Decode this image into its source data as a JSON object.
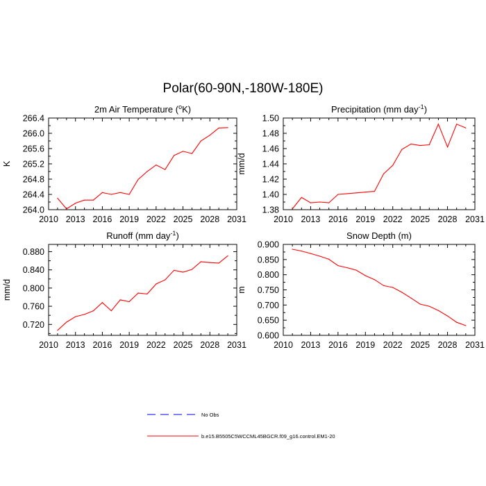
{
  "figure": {
    "title": "Polar(60-90N,-180W-180E)"
  },
  "chart_data": [
    {
      "type": "line",
      "title": "2m Air Temperature",
      "title_units_sup": "o",
      "title_units_main": "K",
      "ylabel": "K",
      "xlim": [
        2010,
        2031
      ],
      "ylim": [
        264.0,
        266.4
      ],
      "xticks": [
        2010,
        2013,
        2016,
        2019,
        2022,
        2025,
        2028,
        2031
      ],
      "yticks": [
        "264.0",
        "264.4",
        "264.8",
        "265.2",
        "265.6",
        "266.0",
        "266.4"
      ],
      "x": [
        2011,
        2012,
        2013,
        2014,
        2015,
        2016,
        2017,
        2018,
        2019,
        2020,
        2021,
        2022,
        2023,
        2024,
        2025,
        2026,
        2027,
        2028,
        2029,
        2030
      ],
      "series": [
        {
          "name": "b.e15.B5505C5WCCML45BGCR.f09_g16.control.EM1-20",
          "color": "#ff0000",
          "values": [
            264.3,
            264.02,
            264.17,
            264.25,
            264.25,
            264.45,
            264.4,
            264.45,
            264.4,
            264.79,
            265.0,
            265.17,
            265.05,
            265.42,
            265.53,
            265.47,
            265.8,
            265.95,
            266.14,
            266.15
          ]
        }
      ]
    },
    {
      "type": "line",
      "title": "Precipitation (mm day",
      "title_sup": "-1",
      "title_after": ")",
      "ylabel": "mm/d",
      "xlim": [
        2010,
        2031
      ],
      "ylim": [
        1.38,
        1.5
      ],
      "xticks": [
        2010,
        2013,
        2016,
        2019,
        2022,
        2025,
        2028,
        2031
      ],
      "yticks": [
        "1.38",
        "1.40",
        "1.42",
        "1.44",
        "1.46",
        "1.48",
        "1.50"
      ],
      "x": [
        2011,
        2012,
        2013,
        2014,
        2015,
        2016,
        2017,
        2018,
        2019,
        2020,
        2021,
        2022,
        2023,
        2024,
        2025,
        2026,
        2027,
        2028,
        2029,
        2030
      ],
      "series": [
        {
          "name": "b.e15.B5505C5WCCML45BGCR.f09_g16.control.EM1-20",
          "color": "#ff0000",
          "values": [
            1.381,
            1.396,
            1.389,
            1.39,
            1.389,
            1.4,
            1.401,
            1.402,
            1.403,
            1.404,
            1.427,
            1.438,
            1.459,
            1.466,
            1.464,
            1.465,
            1.492,
            1.462,
            1.492,
            1.487
          ]
        }
      ]
    },
    {
      "type": "line",
      "title": "Runoff (mm day",
      "title_sup": "-1",
      "title_after": ")",
      "ylabel": "mm/d",
      "xlim": [
        2010,
        2031
      ],
      "ylim": [
        0.696,
        0.896
      ],
      "xticks": [
        2010,
        2013,
        2016,
        2019,
        2022,
        2025,
        2028,
        2031
      ],
      "yticks": [
        "0.720",
        "0.760",
        "0.800",
        "0.840",
        "0.880"
      ],
      "ytick_values": [
        0.72,
        0.76,
        0.8,
        0.84,
        0.88
      ],
      "x": [
        2011,
        2012,
        2013,
        2014,
        2015,
        2016,
        2017,
        2018,
        2019,
        2020,
        2021,
        2022,
        2023,
        2024,
        2025,
        2026,
        2027,
        2028,
        2029,
        2030
      ],
      "series": [
        {
          "name": "b.e15.B5505C5WCCML45BGCR.f09_g16.control.EM1-20",
          "color": "#ff0000",
          "values": [
            0.707,
            0.725,
            0.737,
            0.742,
            0.75,
            0.768,
            0.75,
            0.774,
            0.77,
            0.789,
            0.787,
            0.809,
            0.818,
            0.839,
            0.835,
            0.841,
            0.858,
            0.856,
            0.855,
            0.871
          ]
        }
      ]
    },
    {
      "type": "line",
      "title": "Snow Depth (m)",
      "ylabel": "m",
      "xlim": [
        2010,
        2031
      ],
      "ylim": [
        0.6,
        0.9
      ],
      "xticks": [
        2010,
        2013,
        2016,
        2019,
        2022,
        2025,
        2028,
        2031
      ],
      "yticks": [
        "0.600",
        "0.650",
        "0.700",
        "0.750",
        "0.800",
        "0.850",
        "0.900"
      ],
      "x": [
        2011,
        2012,
        2013,
        2014,
        2015,
        2016,
        2017,
        2018,
        2019,
        2020,
        2021,
        2022,
        2023,
        2024,
        2025,
        2026,
        2027,
        2028,
        2029,
        2030
      ],
      "series": [
        {
          "name": "b.e15.B5505C5WCCML45BGCR.f09_g16.control.EM1-20",
          "color": "#ff0000",
          "values": [
            0.884,
            0.878,
            0.87,
            0.861,
            0.851,
            0.83,
            0.823,
            0.815,
            0.797,
            0.784,
            0.764,
            0.758,
            0.742,
            0.723,
            0.703,
            0.696,
            0.682,
            0.664,
            0.643,
            0.632
          ]
        }
      ]
    }
  ],
  "legend": {
    "items": [
      {
        "label": "No Obs",
        "color": "#0000ff",
        "style": "dashed"
      },
      {
        "label": "b.e15.B5505C5WCCML45BGCR.f09_g16.control.EM1-20",
        "color": "#ff0000",
        "style": "solid"
      }
    ]
  }
}
